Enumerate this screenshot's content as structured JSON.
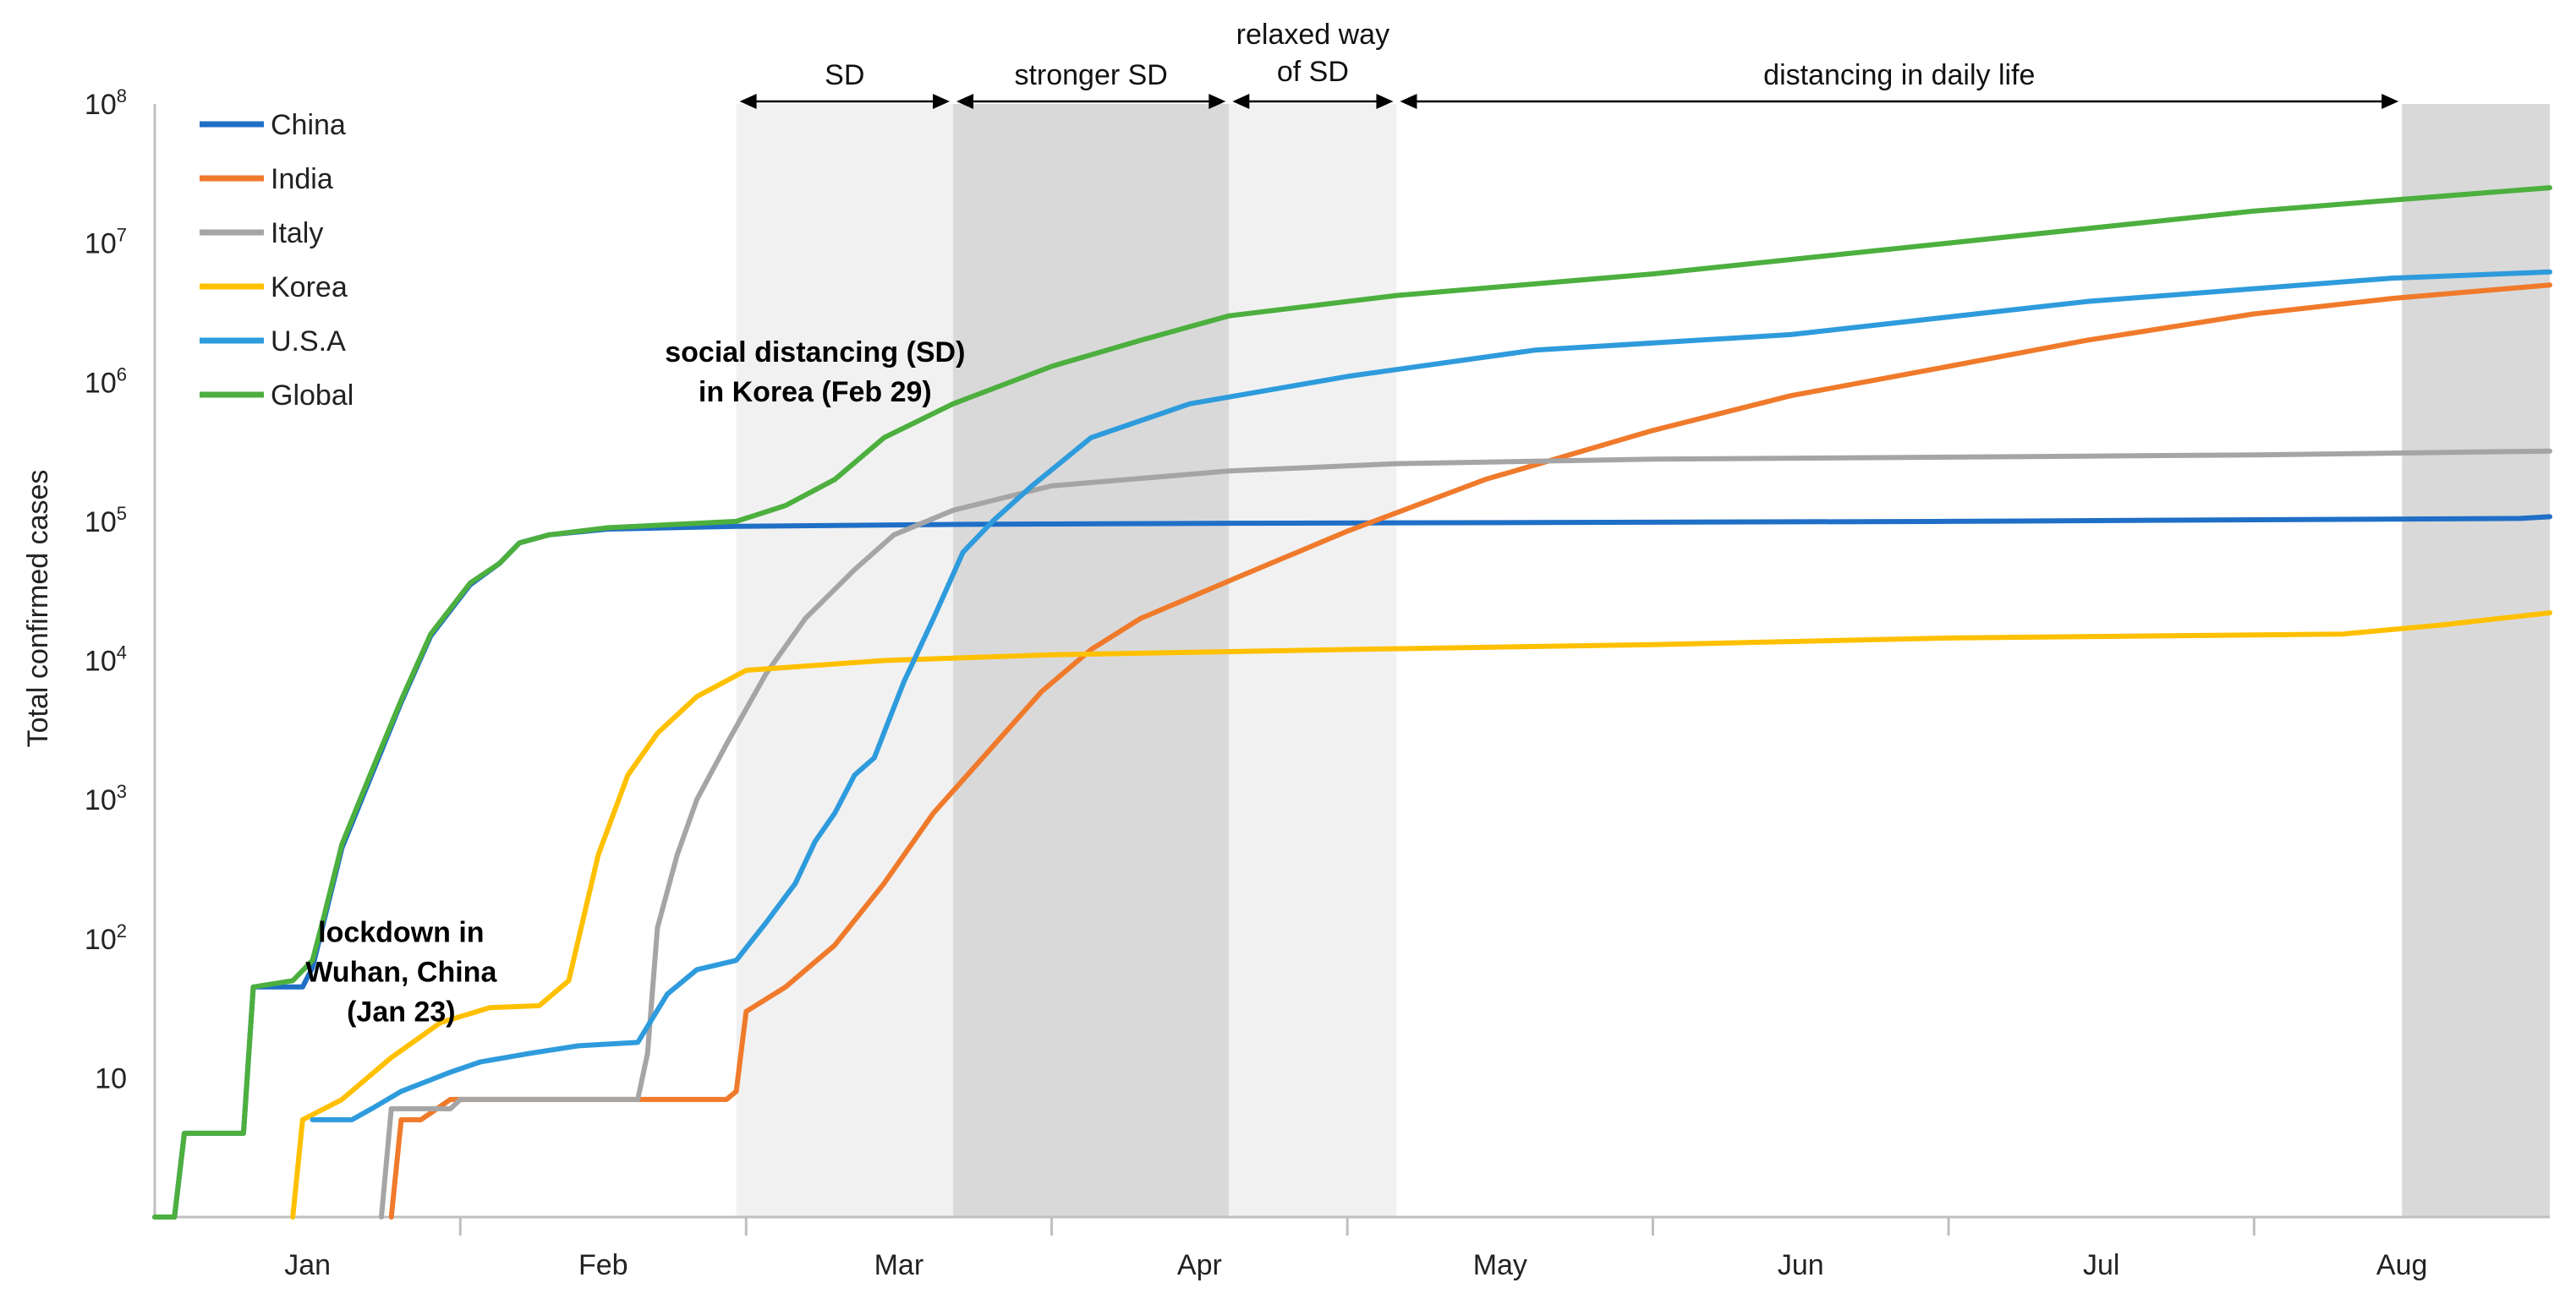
{
  "chart_data": {
    "type": "line",
    "title": "",
    "xlabel": "",
    "ylabel": "Total confirmed cases",
    "yscale": "log",
    "ylim": [
      1,
      100000000
    ],
    "xlim": [
      "2020-01-01",
      "2020-08-31"
    ],
    "y_ticks": [
      {
        "value": 10,
        "label": "10"
      },
      {
        "value": 100,
        "base": "10",
        "exp": "2"
      },
      {
        "value": 1000,
        "base": "10",
        "exp": "3"
      },
      {
        "value": 10000,
        "base": "10",
        "exp": "4"
      },
      {
        "value": 100000,
        "base": "10",
        "exp": "5"
      },
      {
        "value": 1000000,
        "base": "10",
        "exp": "6"
      },
      {
        "value": 10000000,
        "base": "10",
        "exp": "7"
      },
      {
        "value": 100000000,
        "base": "10",
        "exp": "8"
      }
    ],
    "x_months": [
      "Jan",
      "Feb",
      "Mar",
      "Apr",
      "May",
      "Jun",
      "Jul",
      "Aug"
    ],
    "legend_position": "top-left",
    "grid": false,
    "phases": [
      {
        "label": "SD",
        "start": "2020-02-29",
        "end": "2020-03-22",
        "shade": "#f1f1f1"
      },
      {
        "label": "stronger SD",
        "start": "2020-03-22",
        "end": "2020-04-19",
        "shade": "#d9d9d9"
      },
      {
        "label_lines": [
          "relaxed way",
          "of SD"
        ],
        "start": "2020-04-19",
        "end": "2020-05-06",
        "shade": "#f1f1f1"
      },
      {
        "label": "distancing in daily life",
        "start": "2020-05-06",
        "end": "2020-08-16",
        "shade": null
      },
      {
        "label": "",
        "start": "2020-08-16",
        "end": "2020-08-31",
        "shade": "#d9d9d9"
      }
    ],
    "annotations": [
      {
        "lines": [
          "social distancing (SD)",
          "in Korea (Feb 29)"
        ],
        "date": "2020-03-08",
        "value": 1400000
      },
      {
        "lines": [
          "lockdown in",
          "Wuhan, China",
          "(Jan 23)"
        ],
        "date": "2020-01-26",
        "value": 95
      }
    ],
    "series": [
      {
        "name": "China",
        "color": "#1f6fc6",
        "points": [
          [
            "2020-01-01",
            1
          ],
          [
            "2020-01-03",
            1
          ],
          [
            "2020-01-04",
            4
          ],
          [
            "2020-01-10",
            4
          ],
          [
            "2020-01-11",
            45
          ],
          [
            "2020-01-16",
            45
          ],
          [
            "2020-01-17",
            62
          ],
          [
            "2020-01-18",
            120
          ],
          [
            "2020-01-20",
            450
          ],
          [
            "2020-01-23",
            1500
          ],
          [
            "2020-01-26",
            5000
          ],
          [
            "2020-01-29",
            15000
          ],
          [
            "2020-02-02",
            35000
          ],
          [
            "2020-02-05",
            50000
          ],
          [
            "2020-02-07",
            70000
          ],
          [
            "2020-02-10",
            80000
          ],
          [
            "2020-02-16",
            88000
          ],
          [
            "2020-02-29",
            92000
          ],
          [
            "2020-03-22",
            95000
          ],
          [
            "2020-04-19",
            97000
          ],
          [
            "2020-05-20",
            98000
          ],
          [
            "2020-07-01",
            100000
          ],
          [
            "2020-08-28",
            105000
          ],
          [
            "2020-08-31",
            108000
          ]
        ]
      },
      {
        "name": "India",
        "color": "#f07a2b",
        "points": [
          [
            "2020-01-25",
            1
          ],
          [
            "2020-01-26",
            5
          ],
          [
            "2020-01-28",
            5
          ],
          [
            "2020-01-31",
            7
          ],
          [
            "2020-02-28",
            7
          ],
          [
            "2020-02-29",
            8
          ],
          [
            "2020-03-01",
            30
          ],
          [
            "2020-03-05",
            45
          ],
          [
            "2020-03-10",
            90
          ],
          [
            "2020-03-15",
            250
          ],
          [
            "2020-03-20",
            800
          ],
          [
            "2020-03-25",
            2000
          ],
          [
            "2020-03-31",
            6000
          ],
          [
            "2020-04-05",
            12000
          ],
          [
            "2020-04-10",
            20000
          ],
          [
            "2020-04-20",
            40000
          ],
          [
            "2020-05-01",
            85000
          ],
          [
            "2020-05-15",
            200000
          ],
          [
            "2020-06-01",
            450000
          ],
          [
            "2020-06-15",
            800000
          ],
          [
            "2020-07-01",
            1300000
          ],
          [
            "2020-07-15",
            2000000
          ],
          [
            "2020-08-01",
            3100000
          ],
          [
            "2020-08-15",
            4000000
          ],
          [
            "2020-08-31",
            5000000
          ]
        ]
      },
      {
        "name": "Italy",
        "color": "#a5a5a5",
        "points": [
          [
            "2020-01-24",
            1
          ],
          [
            "2020-01-25",
            6
          ],
          [
            "2020-01-31",
            6
          ],
          [
            "2020-02-01",
            7
          ],
          [
            "2020-02-19",
            7
          ],
          [
            "2020-02-20",
            15
          ],
          [
            "2020-02-21",
            120
          ],
          [
            "2020-02-23",
            400
          ],
          [
            "2020-02-25",
            1000
          ],
          [
            "2020-02-28",
            2500
          ],
          [
            "2020-03-03",
            8000
          ],
          [
            "2020-03-07",
            20000
          ],
          [
            "2020-03-12",
            45000
          ],
          [
            "2020-03-16",
            80000
          ],
          [
            "2020-03-22",
            120000
          ],
          [
            "2020-04-01",
            180000
          ],
          [
            "2020-04-19",
            230000
          ],
          [
            "2020-05-06",
            260000
          ],
          [
            "2020-06-01",
            280000
          ],
          [
            "2020-08-01",
            300000
          ],
          [
            "2020-08-31",
            320000
          ]
        ]
      },
      {
        "name": "Korea",
        "color": "#ffc000",
        "points": [
          [
            "2020-01-15",
            1
          ],
          [
            "2020-01-16",
            5
          ],
          [
            "2020-01-20",
            7
          ],
          [
            "2020-01-25",
            14
          ],
          [
            "2020-01-30",
            25
          ],
          [
            "2020-02-04",
            32
          ],
          [
            "2020-02-09",
            33
          ],
          [
            "2020-02-12",
            50
          ],
          [
            "2020-02-15",
            400
          ],
          [
            "2020-02-18",
            1500
          ],
          [
            "2020-02-21",
            3000
          ],
          [
            "2020-02-25",
            5500
          ],
          [
            "2020-03-01",
            8500
          ],
          [
            "2020-03-15",
            10000
          ],
          [
            "2020-04-01",
            11000
          ],
          [
            "2020-05-01",
            12000
          ],
          [
            "2020-06-01",
            13000
          ],
          [
            "2020-07-01",
            14500
          ],
          [
            "2020-08-10",
            15500
          ],
          [
            "2020-08-20",
            18000
          ],
          [
            "2020-08-31",
            22000
          ]
        ]
      },
      {
        "name": "U.S.A",
        "color": "#2e9bdc",
        "points": [
          [
            "2020-01-17",
            5
          ],
          [
            "2020-01-21",
            5
          ],
          [
            "2020-01-23",
            6
          ],
          [
            "2020-01-26",
            8
          ],
          [
            "2020-01-31",
            11
          ],
          [
            "2020-02-03",
            13
          ],
          [
            "2020-02-08",
            15
          ],
          [
            "2020-02-13",
            17
          ],
          [
            "2020-02-19",
            18
          ],
          [
            "2020-02-22",
            40
          ],
          [
            "2020-02-25",
            60
          ],
          [
            "2020-02-29",
            70
          ],
          [
            "2020-03-03",
            130
          ],
          [
            "2020-03-06",
            250
          ],
          [
            "2020-03-08",
            500
          ],
          [
            "2020-03-10",
            800
          ],
          [
            "2020-03-12",
            1500
          ],
          [
            "2020-03-14",
            2000
          ],
          [
            "2020-03-17",
            7000
          ],
          [
            "2020-03-20",
            20000
          ],
          [
            "2020-03-23",
            60000
          ],
          [
            "2020-03-26",
            100000
          ],
          [
            "2020-03-30",
            180000
          ],
          [
            "2020-04-05",
            400000
          ],
          [
            "2020-04-15",
            700000
          ],
          [
            "2020-05-01",
            1100000
          ],
          [
            "2020-05-20",
            1700000
          ],
          [
            "2020-06-15",
            2200000
          ],
          [
            "2020-07-15",
            3800000
          ],
          [
            "2020-08-15",
            5600000
          ],
          [
            "2020-08-31",
            6200000
          ]
        ]
      },
      {
        "name": "Global",
        "color": "#4caf3e",
        "points": [
          [
            "2020-01-01",
            1
          ],
          [
            "2020-01-03",
            1
          ],
          [
            "2020-01-04",
            4
          ],
          [
            "2020-01-10",
            4
          ],
          [
            "2020-01-11",
            45
          ],
          [
            "2020-01-15",
            50
          ],
          [
            "2020-01-17",
            70
          ],
          [
            "2020-01-18",
            130
          ],
          [
            "2020-01-20",
            480
          ],
          [
            "2020-01-23",
            1600
          ],
          [
            "2020-01-26",
            5200
          ],
          [
            "2020-01-29",
            15500
          ],
          [
            "2020-02-02",
            36000
          ],
          [
            "2020-02-05",
            50000
          ],
          [
            "2020-02-07",
            70000
          ],
          [
            "2020-02-10",
            80000
          ],
          [
            "2020-02-16",
            90000
          ],
          [
            "2020-02-29",
            100000
          ],
          [
            "2020-03-05",
            130000
          ],
          [
            "2020-03-10",
            200000
          ],
          [
            "2020-03-15",
            400000
          ],
          [
            "2020-03-22",
            700000
          ],
          [
            "2020-04-01",
            1300000
          ],
          [
            "2020-04-10",
            2000000
          ],
          [
            "2020-04-19",
            3000000
          ],
          [
            "2020-05-06",
            4200000
          ],
          [
            "2020-06-01",
            6000000
          ],
          [
            "2020-07-01",
            10000000
          ],
          [
            "2020-08-01",
            17000000
          ],
          [
            "2020-08-31",
            25000000
          ]
        ]
      }
    ]
  }
}
